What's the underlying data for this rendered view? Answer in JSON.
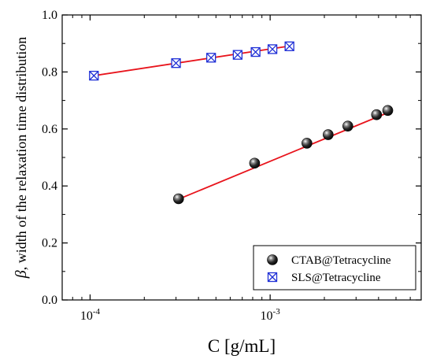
{
  "chart_data": {
    "type": "scatter",
    "xlabel": "C [g/mL]",
    "ylabel_symbol": "β",
    "ylabel_text": ", width of the relaxation time distribution",
    "xscale": "log",
    "xlim": [
      7e-05,
      0.0069
    ],
    "ylim": [
      0.0,
      1.0
    ],
    "x_tick_values": [
      0.0001,
      0.001
    ],
    "x_tick_labels": [
      {
        "base": "10",
        "exp": "-4"
      },
      {
        "base": "10",
        "exp": "-3"
      }
    ],
    "y_ticks": [
      0.0,
      0.2,
      0.4,
      0.6,
      0.8,
      1.0
    ],
    "y_tick_labels": [
      "0.0",
      "0.2",
      "0.4",
      "0.6",
      "0.8",
      "1.0"
    ],
    "grid": false,
    "legend_position": "bottom-right",
    "fit_color": "#e8141c",
    "series": [
      {
        "name": "CTAB@Tetracycline",
        "marker": "sphere",
        "color": "#000000",
        "x": [
          0.00031,
          0.00082,
          0.0016,
          0.0021,
          0.0027,
          0.0039,
          0.0045
        ],
        "y": [
          0.355,
          0.48,
          0.55,
          0.58,
          0.61,
          0.65,
          0.665
        ],
        "fit": {
          "x": [
            0.0003,
            0.0047
          ],
          "y": [
            0.35,
            0.662
          ]
        }
      },
      {
        "name": "SLS@Tetracycline",
        "marker": "crossed-square",
        "color": "#1f2fd6",
        "x": [
          0.000105,
          0.0003,
          0.00047,
          0.00066,
          0.00083,
          0.00103,
          0.00128
        ],
        "y": [
          0.787,
          0.831,
          0.85,
          0.86,
          0.87,
          0.88,
          0.89
        ],
        "fit": {
          "x": [
            0.000105,
            0.00128
          ],
          "y": [
            0.787,
            0.891
          ]
        }
      }
    ]
  }
}
